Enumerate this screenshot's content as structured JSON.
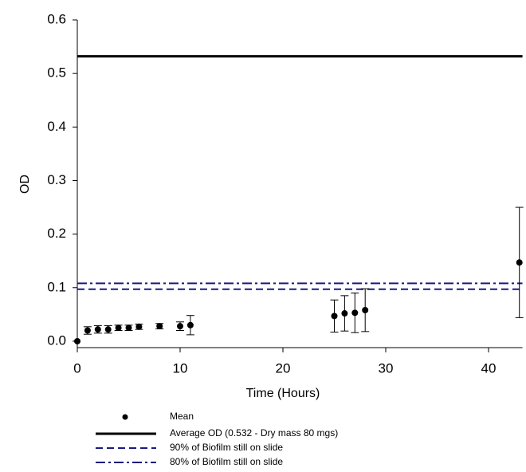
{
  "chart_data": {
    "type": "scatter",
    "x_label": "Time (Hours)",
    "y_label": "OD",
    "x": [
      0,
      1,
      2,
      3,
      4,
      5,
      6,
      8,
      10,
      11,
      25,
      26,
      27,
      28,
      43
    ],
    "series": [
      {
        "name": "Mean",
        "color": "#000000",
        "values": [
          0.0,
          0.02,
          0.022,
          0.022,
          0.025,
          0.025,
          0.027,
          0.028,
          0.028,
          0.03,
          0.047,
          0.052,
          0.053,
          0.058,
          0.147
        ],
        "errors": [
          0,
          0.007,
          0.007,
          0.007,
          0.005,
          0.005,
          0.005,
          0.005,
          0.008,
          0.018,
          0.03,
          0.033,
          0.037,
          0.04,
          0.103
        ]
      }
    ],
    "ref_lines": [
      {
        "name": "Average OD (0.532 - Dry mass 80 mgs)",
        "value": 0.532,
        "color": "#000000",
        "style": "solid"
      },
      {
        "name": "90% of Biofilm still on slide",
        "value": 0.097,
        "color": "#1a1a80",
        "style": "dashed"
      },
      {
        "name": "80% of Biofilm still on slide",
        "value": 0.108,
        "color": "#1a1a80",
        "style": "dashdot"
      }
    ],
    "xlim": [
      0,
      43.3
    ],
    "ylim": [
      -0.012,
      0.6
    ],
    "xticks": [
      0,
      10,
      20,
      30,
      40
    ],
    "yticks": [
      {
        "value": 0,
        "label": "0.0"
      },
      0.1,
      0.2,
      0.3,
      0.4,
      0.5,
      0.6
    ],
    "legend": "bottom"
  }
}
